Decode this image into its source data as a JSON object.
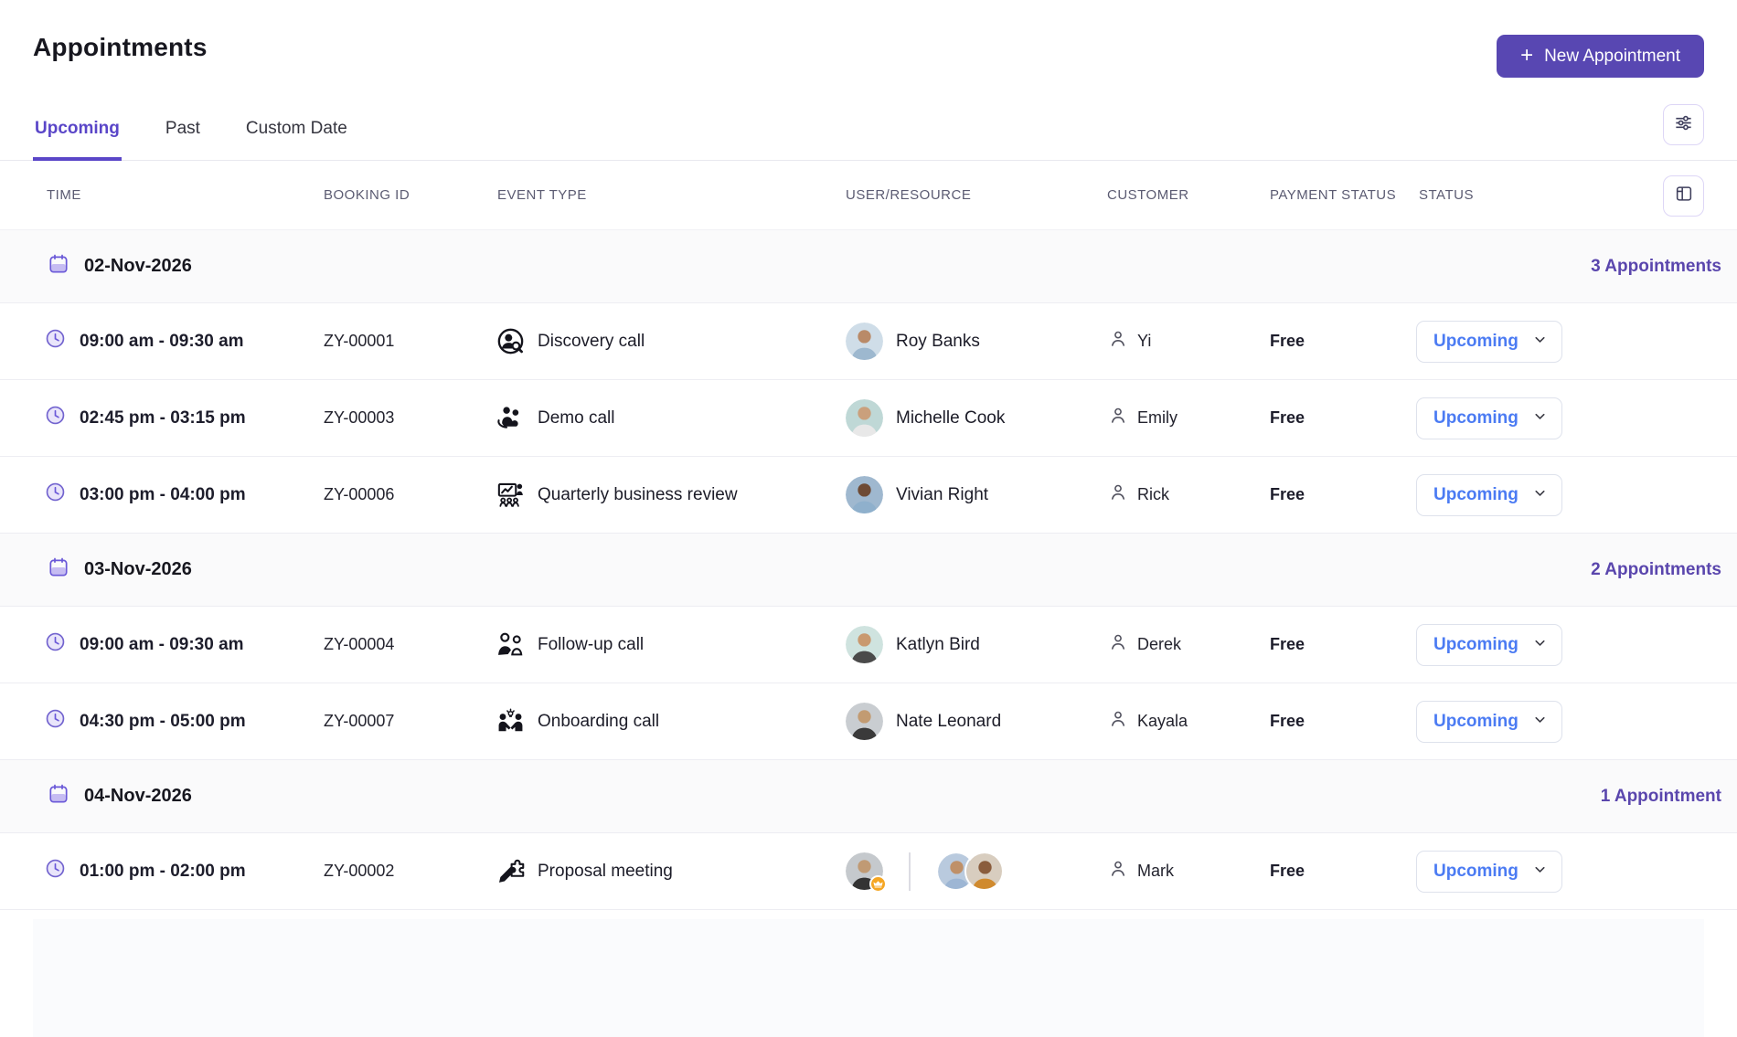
{
  "colors": {
    "brand_purple": "#5847b2",
    "accent_purple": "#5a46c8",
    "count_purple": "#5a46ad",
    "status_blue": "#4b7bf3",
    "crown_orange": "#f5a623"
  },
  "page": {
    "title": "Appointments"
  },
  "header": {
    "new_appointment_label": "New Appointment",
    "plus": "+"
  },
  "tabs": [
    {
      "label": "Upcoming",
      "active": true
    },
    {
      "label": "Past",
      "active": false
    },
    {
      "label": "Custom Date",
      "active": false
    }
  ],
  "table": {
    "columns": [
      "TIME",
      "BOOKING ID",
      "EVENT TYPE",
      "USER/RESOURCE",
      "CUSTOMER",
      "PAYMENT STATUS",
      "STATUS"
    ]
  },
  "groups": [
    {
      "date": "02-Nov-2026",
      "count_label": "3 Appointments",
      "rows": [
        {
          "time": "09:00 am - 09:30 am",
          "booking_id": "ZY-00001",
          "event_type": "Discovery call",
          "event_icon": "discovery-call-icon",
          "user": {
            "name": "Roy Banks",
            "avatars": [
              {
                "bg": "#cfdde8",
                "skin": "#b98a68",
                "shirt": "#9db8cf"
              }
            ]
          },
          "customer": "Yi",
          "payment_status": "Free",
          "status": "Upcoming"
        },
        {
          "time": "02:45 pm - 03:15 pm",
          "booking_id": "ZY-00003",
          "event_type": "Demo call",
          "event_icon": "demo-call-icon",
          "user": {
            "name": "Michelle Cook",
            "avatars": [
              {
                "bg": "#bfd8d6",
                "skin": "#caa07c",
                "shirt": "#e8e8e8"
              }
            ]
          },
          "customer": "Emily",
          "payment_status": "Free",
          "status": "Upcoming"
        },
        {
          "time": "03:00 pm - 04:00 pm",
          "booking_id": "ZY-00006",
          "event_type": "Quarterly business review",
          "event_icon": "quarterly-business-review-icon",
          "user": {
            "name": "Vivian Right",
            "avatars": [
              {
                "bg": "#9fb8cf",
                "skin": "#6e4a34",
                "shirt": "#8fb0cc"
              }
            ]
          },
          "customer": "Rick",
          "payment_status": "Free",
          "status": "Upcoming"
        }
      ]
    },
    {
      "date": "03-Nov-2026",
      "count_label": "2 Appointments",
      "rows": [
        {
          "time": "09:00 am - 09:30 am",
          "booking_id": "ZY-00004",
          "event_type": "Follow-up call",
          "event_icon": "follow-up-call-icon",
          "user": {
            "name": "Katlyn Bird",
            "avatars": [
              {
                "bg": "#cfe3df",
                "skin": "#c9996f",
                "shirt": "#4a4a4a"
              }
            ]
          },
          "customer": "Derek",
          "payment_status": "Free",
          "status": "Upcoming"
        },
        {
          "time": "04:30 pm - 05:00 pm",
          "booking_id": "ZY-00007",
          "event_type": "Onboarding call",
          "event_icon": "onboarding-call-icon",
          "user": {
            "name": "Nate Leonard",
            "avatars": [
              {
                "bg": "#c9cdd1",
                "skin": "#c29b72",
                "shirt": "#3a3a3a"
              }
            ]
          },
          "customer": "Kayala",
          "payment_status": "Free",
          "status": "Upcoming"
        }
      ]
    },
    {
      "date": "04-Nov-2026",
      "count_label": "1 Appointment",
      "rows": [
        {
          "time": "01:00 pm - 02:00 pm",
          "booking_id": "ZY-00002",
          "event_type": "Proposal meeting",
          "event_icon": "proposal-meeting-icon",
          "user": {
            "name": "",
            "has_crown": true,
            "divider": true,
            "avatars": [
              {
                "bg": "#c5c9cd",
                "skin": "#c09a74",
                "shirt": "#333333"
              },
              {
                "bg": "#b9cade",
                "skin": "#bf9068",
                "shirt": "#9db6d4"
              },
              {
                "bg": "#d8cdbf",
                "skin": "#8a5c3c",
                "shirt": "#d08a2e"
              }
            ]
          },
          "customer": "Mark",
          "payment_status": "Free",
          "status": "Upcoming"
        }
      ]
    }
  ]
}
